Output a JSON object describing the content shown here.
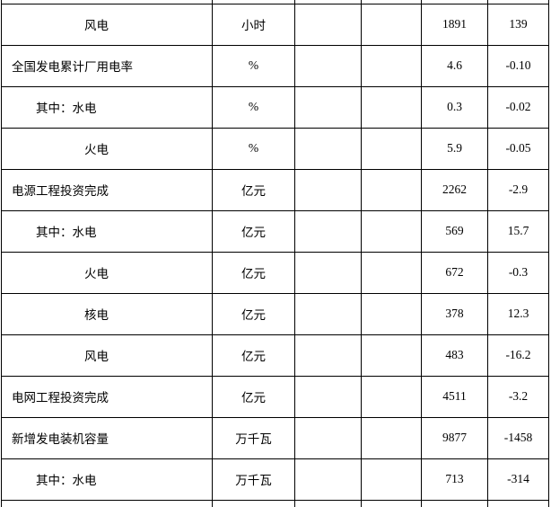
{
  "table": {
    "rows": [
      {
        "indicator": "风电",
        "unit": "小时",
        "value": "1891",
        "change": "139"
      },
      {
        "indicator": "全国发电累计厂用电率",
        "unit": "%",
        "value": "4.6",
        "change": "-0.10"
      },
      {
        "indicator": "其中：水电",
        "unit": "%",
        "value": "0.3",
        "change": "-0.02"
      },
      {
        "indicator": "火电",
        "unit": "%",
        "value": "5.9",
        "change": "-0.05"
      },
      {
        "indicator": "电源工程投资完成",
        "unit": "亿元",
        "value": "2262",
        "change": "-2.9"
      },
      {
        "indicator": "其中：水电",
        "unit": "亿元",
        "value": "569",
        "change": "15.7"
      },
      {
        "indicator": "火电",
        "unit": "亿元",
        "value": "672",
        "change": "-0.3"
      },
      {
        "indicator": "核电",
        "unit": "亿元",
        "value": "378",
        "change": "12.3"
      },
      {
        "indicator": "风电",
        "unit": "亿元",
        "value": "483",
        "change": "-16.2"
      },
      {
        "indicator": "电网工程投资完成",
        "unit": "亿元",
        "value": "4511",
        "change": "-3.2"
      },
      {
        "indicator": "新增发电装机容量",
        "unit": "万千瓦",
        "value": "9877",
        "change": "-1458"
      },
      {
        "indicator": "其中：水电",
        "unit": "万千瓦",
        "value": "713",
        "change": "-314"
      }
    ],
    "colors": {
      "border": "#000000",
      "text": "#000000",
      "background": "#ffffff"
    }
  }
}
